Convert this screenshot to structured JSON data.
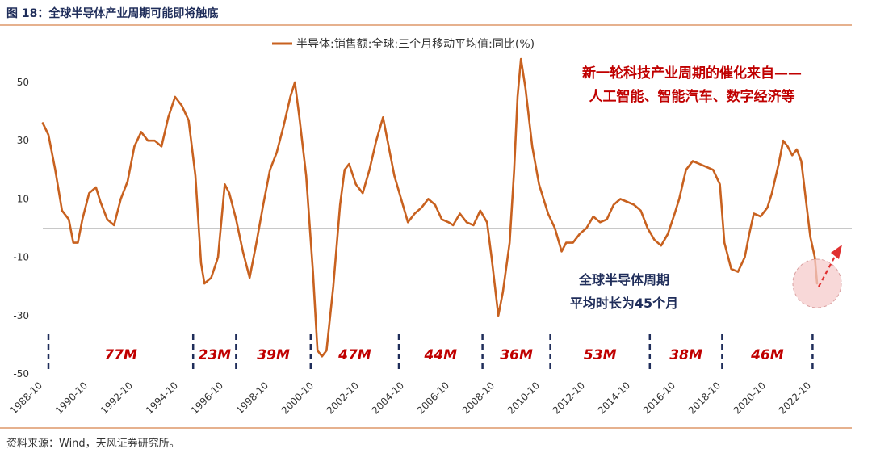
{
  "figure_title": "图 18：全球半导体产业周期可能即将触底",
  "source": "资料来源：Wind，天风证券研究所。",
  "annotation_top": [
    "新一轮科技产业周期的催化来自——",
    "人工智能、智能汽车、数字经济等"
  ],
  "annotation_bottom": [
    "全球半导体周期",
    "平均时长为45个月"
  ],
  "colors": {
    "line": "#C8611F",
    "title": "#1F2D5A",
    "red_text": "#C00000",
    "navy_text": "#1F2D5A",
    "accent": "#D7824A",
    "circle_fill": "#F5CBCB",
    "arrow": "#E03030"
  },
  "chart_data": {
    "type": "line",
    "title": "",
    "xlabel": "",
    "ylabel": "",
    "ylim": [
      -50,
      60
    ],
    "y_ticks": [
      50,
      30,
      10,
      -10,
      -30,
      -50
    ],
    "x_range": [
      1988.75,
      2023.0
    ],
    "x_tick_labels": [
      "1988-10",
      "1990-10",
      "1992-10",
      "1994-10",
      "1996-10",
      "1998-10",
      "2000-10",
      "2002-10",
      "2004-10",
      "2006-10",
      "2008-10",
      "2010-10",
      "2012-10",
      "2014-10",
      "2016-10",
      "2018-10",
      "2020-10",
      "2022-10"
    ],
    "legend": {
      "position": "top-center"
    },
    "series": [
      {
        "name": "半导体:销售额:全球:三个月移动平均值:同比(%)",
        "points": [
          [
            1988.75,
            36
          ],
          [
            1989.0,
            32
          ],
          [
            1989.3,
            20
          ],
          [
            1989.6,
            6
          ],
          [
            1989.9,
            3
          ],
          [
            1990.1,
            -5
          ],
          [
            1990.3,
            -5
          ],
          [
            1990.5,
            3
          ],
          [
            1990.8,
            12
          ],
          [
            1991.1,
            14
          ],
          [
            1991.3,
            9
          ],
          [
            1991.6,
            3
          ],
          [
            1991.9,
            1
          ],
          [
            1992.2,
            10
          ],
          [
            1992.5,
            16
          ],
          [
            1992.8,
            28
          ],
          [
            1993.1,
            33
          ],
          [
            1993.4,
            30
          ],
          [
            1993.7,
            30
          ],
          [
            1994.0,
            28
          ],
          [
            1994.3,
            38
          ],
          [
            1994.6,
            45
          ],
          [
            1994.9,
            42
          ],
          [
            1995.2,
            37
          ],
          [
            1995.5,
            18
          ],
          [
            1995.75,
            -12
          ],
          [
            1995.9,
            -19
          ],
          [
            1996.2,
            -17
          ],
          [
            1996.5,
            -10
          ],
          [
            1996.8,
            15
          ],
          [
            1997.0,
            12
          ],
          [
            1997.3,
            3
          ],
          [
            1997.6,
            -8
          ],
          [
            1997.9,
            -17
          ],
          [
            1998.2,
            -5
          ],
          [
            1998.5,
            8
          ],
          [
            1998.8,
            20
          ],
          [
            1999.1,
            26
          ],
          [
            1999.4,
            35
          ],
          [
            1999.7,
            45
          ],
          [
            1999.9,
            50
          ],
          [
            2000.1,
            38
          ],
          [
            2000.4,
            18
          ],
          [
            2000.7,
            -15
          ],
          [
            2000.9,
            -42
          ],
          [
            2001.1,
            -44
          ],
          [
            2001.3,
            -42
          ],
          [
            2001.6,
            -20
          ],
          [
            2001.9,
            8
          ],
          [
            2002.1,
            20
          ],
          [
            2002.3,
            22
          ],
          [
            2002.6,
            15
          ],
          [
            2002.9,
            12
          ],
          [
            2003.2,
            20
          ],
          [
            2003.5,
            30
          ],
          [
            2003.8,
            38
          ],
          [
            2004.0,
            30
          ],
          [
            2004.3,
            18
          ],
          [
            2004.6,
            10
          ],
          [
            2004.9,
            2
          ],
          [
            2005.2,
            5
          ],
          [
            2005.5,
            7
          ],
          [
            2005.8,
            10
          ],
          [
            2006.1,
            8
          ],
          [
            2006.4,
            3
          ],
          [
            2006.7,
            2
          ],
          [
            2006.9,
            1
          ],
          [
            2007.2,
            5
          ],
          [
            2007.5,
            2
          ],
          [
            2007.8,
            1
          ],
          [
            2008.1,
            6
          ],
          [
            2008.4,
            2
          ],
          [
            2008.6,
            -10
          ],
          [
            2008.9,
            -30
          ],
          [
            2009.1,
            -22
          ],
          [
            2009.4,
            -5
          ],
          [
            2009.6,
            20
          ],
          [
            2009.75,
            45
          ],
          [
            2009.9,
            58
          ],
          [
            2010.1,
            48
          ],
          [
            2010.4,
            28
          ],
          [
            2010.7,
            15
          ],
          [
            2010.9,
            10
          ],
          [
            2011.1,
            5
          ],
          [
            2011.4,
            0
          ],
          [
            2011.7,
            -8
          ],
          [
            2011.9,
            -5
          ],
          [
            2012.2,
            -5
          ],
          [
            2012.5,
            -2
          ],
          [
            2012.8,
            0
          ],
          [
            2013.1,
            4
          ],
          [
            2013.4,
            2
          ],
          [
            2013.7,
            3
          ],
          [
            2014.0,
            8
          ],
          [
            2014.3,
            10
          ],
          [
            2014.6,
            9
          ],
          [
            2014.9,
            8
          ],
          [
            2015.2,
            6
          ],
          [
            2015.5,
            0
          ],
          [
            2015.8,
            -4
          ],
          [
            2016.1,
            -6
          ],
          [
            2016.4,
            -2
          ],
          [
            2016.7,
            5
          ],
          [
            2016.9,
            10
          ],
          [
            2017.2,
            20
          ],
          [
            2017.5,
            23
          ],
          [
            2017.8,
            22
          ],
          [
            2018.1,
            21
          ],
          [
            2018.4,
            20
          ],
          [
            2018.7,
            15
          ],
          [
            2018.9,
            -5
          ],
          [
            2019.2,
            -14
          ],
          [
            2019.5,
            -15
          ],
          [
            2019.8,
            -10
          ],
          [
            2020.0,
            -2
          ],
          [
            2020.2,
            5
          ],
          [
            2020.5,
            4
          ],
          [
            2020.8,
            7
          ],
          [
            2021.0,
            12
          ],
          [
            2021.3,
            22
          ],
          [
            2021.5,
            30
          ],
          [
            2021.7,
            28
          ],
          [
            2021.9,
            25
          ],
          [
            2022.1,
            27
          ],
          [
            2022.3,
            23
          ],
          [
            2022.5,
            10
          ],
          [
            2022.7,
            -3
          ],
          [
            2022.9,
            -10
          ],
          [
            2023.0,
            -19
          ]
        ]
      }
    ],
    "cycles": {
      "boundaries": [
        1989.0,
        1995.4,
        1997.3,
        2000.6,
        2004.5,
        2008.2,
        2011.2,
        2015.6,
        2018.8,
        2022.8
      ],
      "labels": [
        "77M",
        "23M",
        "39M",
        "47M",
        "44M",
        "36M",
        "53M",
        "38M",
        "46M"
      ]
    }
  }
}
